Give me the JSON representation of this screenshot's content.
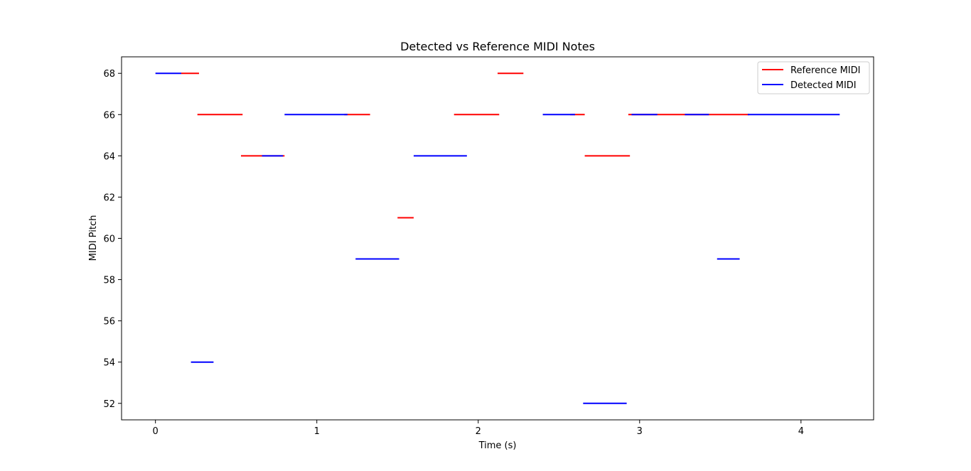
{
  "chart_data": {
    "type": "line",
    "title": "Detected vs Reference MIDI Notes",
    "xlabel": "Time (s)",
    "ylabel": "MIDI Pitch",
    "xlim": [
      -0.21,
      4.45
    ],
    "ylim": [
      51.2,
      68.8
    ],
    "xticks": [
      0,
      1,
      2,
      3,
      4
    ],
    "yticks": [
      52,
      54,
      56,
      58,
      60,
      62,
      64,
      66,
      68
    ],
    "grid": false,
    "legend_position": "upper-right",
    "series": [
      {
        "name": "Reference MIDI",
        "color": "#ff0000",
        "notes": [
          {
            "start": 0.16,
            "end": 0.27,
            "pitch": 68
          },
          {
            "start": 0.26,
            "end": 0.54,
            "pitch": 66
          },
          {
            "start": 0.53,
            "end": 0.8,
            "pitch": 64
          },
          {
            "start": 1.17,
            "end": 1.33,
            "pitch": 66
          },
          {
            "start": 1.5,
            "end": 1.6,
            "pitch": 61
          },
          {
            "start": 1.85,
            "end": 2.13,
            "pitch": 66
          },
          {
            "start": 2.12,
            "end": 2.28,
            "pitch": 68
          },
          {
            "start": 2.57,
            "end": 2.66,
            "pitch": 66
          },
          {
            "start": 2.66,
            "end": 2.94,
            "pitch": 64
          },
          {
            "start": 2.93,
            "end": 3.68,
            "pitch": 66
          }
        ]
      },
      {
        "name": "Detected MIDI",
        "color": "#0000ff",
        "notes": [
          {
            "start": 0.0,
            "end": 0.16,
            "pitch": 68
          },
          {
            "start": 0.22,
            "end": 0.36,
            "pitch": 54
          },
          {
            "start": 0.66,
            "end": 0.79,
            "pitch": 64
          },
          {
            "start": 0.8,
            "end": 1.19,
            "pitch": 66
          },
          {
            "start": 1.24,
            "end": 1.51,
            "pitch": 59
          },
          {
            "start": 1.6,
            "end": 1.93,
            "pitch": 64
          },
          {
            "start": 2.4,
            "end": 2.6,
            "pitch": 66
          },
          {
            "start": 2.65,
            "end": 2.92,
            "pitch": 52
          },
          {
            "start": 2.95,
            "end": 3.11,
            "pitch": 66
          },
          {
            "start": 3.28,
            "end": 3.43,
            "pitch": 66
          },
          {
            "start": 3.48,
            "end": 3.62,
            "pitch": 59
          },
          {
            "start": 3.67,
            "end": 4.24,
            "pitch": 66
          }
        ]
      }
    ]
  }
}
